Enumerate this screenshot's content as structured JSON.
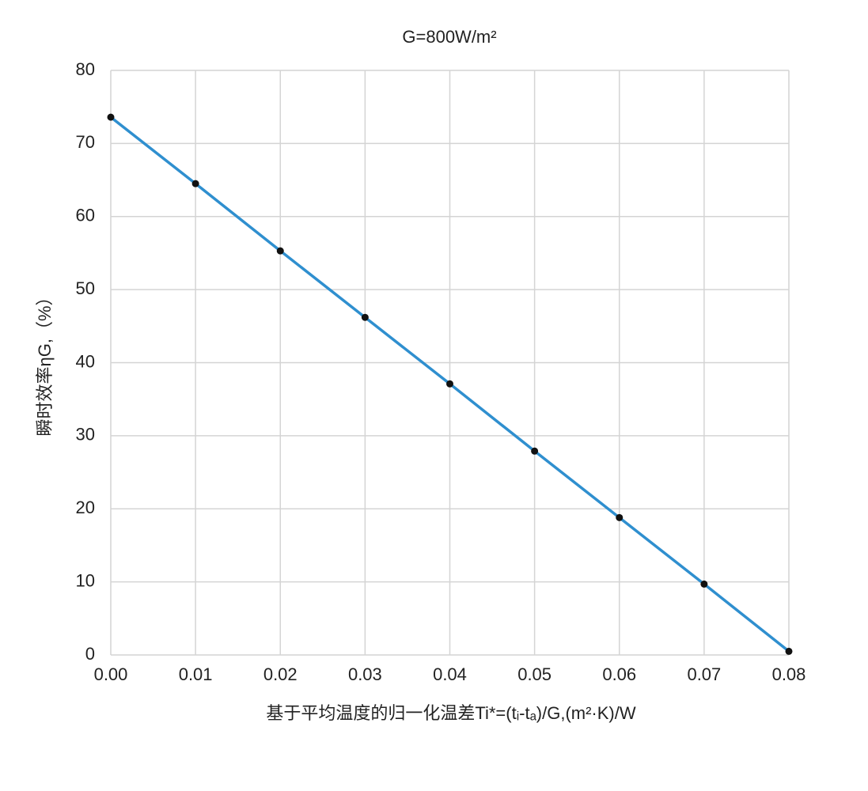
{
  "chart_data": {
    "type": "line",
    "title": "G=800W/m²",
    "x_label": "基于平均温度的归一化温差Ti*=(tᵢ-tₐ)/G,(m²·K)/W",
    "y_label": "瞬时效率ηG,（%）",
    "x": [
      0,
      0.01,
      0.02,
      0.03,
      0.04,
      0.05,
      0.06,
      0.07,
      0.08
    ],
    "series": [
      {
        "color": "#2f8fcf",
        "values": [
          73.6,
          64.5,
          55.3,
          46.2,
          37.1,
          27.9,
          18.8,
          9.7,
          0.5
        ]
      }
    ],
    "marker_color": "#111111",
    "xlim": [
      0,
      0.08
    ],
    "xticks": [
      {
        "value": 0,
        "label": "0.00"
      },
      {
        "value": 0.01,
        "label": "0.01"
      },
      {
        "value": 0.02,
        "label": "0.02"
      },
      {
        "value": 0.03,
        "label": "0.03"
      },
      {
        "value": 0.04,
        "label": "0.04"
      },
      {
        "value": 0.05,
        "label": "0.05"
      },
      {
        "value": 0.06,
        "label": "0.06"
      },
      {
        "value": 0.07,
        "label": "0.07"
      },
      {
        "value": 0.08,
        "label": "0.08"
      }
    ],
    "ylim": [
      0,
      80
    ],
    "yticks": [
      0,
      10,
      20,
      30,
      40,
      50,
      60,
      70,
      80
    ],
    "grid": true
  }
}
